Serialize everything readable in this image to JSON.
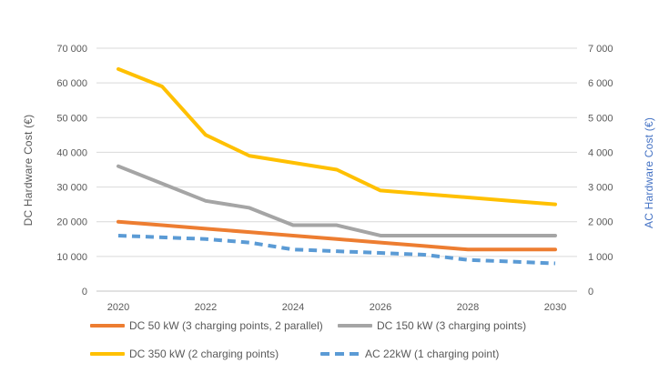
{
  "chart_data": {
    "type": "line",
    "title": "",
    "x": [
      2020,
      2021,
      2022,
      2023,
      2024,
      2025,
      2026,
      2027,
      2028,
      2029,
      2030
    ],
    "x_ticks": {
      "values": [
        2020,
        2022,
        2024,
        2026,
        2028,
        2030
      ],
      "labels": [
        "2020",
        "2022",
        "2024",
        "2026",
        "2028",
        "2030"
      ]
    },
    "left_axis": {
      "label": "DC Hardware Cost (€)",
      "min": 0,
      "max": 70000,
      "tick_values": [
        70000,
        60000,
        50000,
        40000,
        30000,
        20000,
        10000,
        0
      ],
      "tick_labels": [
        "70 000",
        "60 000",
        "50 000",
        "40 000",
        "30 000",
        "20 000",
        "10 000",
        "0"
      ]
    },
    "right_axis": {
      "label": "AC Hardware Cost (€)",
      "min": 0,
      "max": 7000,
      "tick_values": [
        7000,
        6000,
        5000,
        4000,
        3000,
        2000,
        1000,
        0
      ],
      "tick_labels": [
        "7 000",
        "6 000",
        "5 000",
        "4 000",
        "3 000",
        "2 000",
        "1 000",
        "0"
      ]
    },
    "grid": true,
    "legend_position": "bottom",
    "colors": {
      "gridline": "#D9D9D9",
      "baseline": "#C6C6C6",
      "tick_text": "#595959"
    },
    "series": [
      {
        "name": "DC 50 kW (3 charging points, 2 parallel)",
        "axis": "left",
        "color": "#ED7D31",
        "style": "solid",
        "values": [
          20000,
          19000,
          18000,
          17000,
          16000,
          15000,
          14000,
          13000,
          12000,
          12000,
          12000
        ]
      },
      {
        "name": "DC 150 kW (3 charging points)",
        "axis": "left",
        "color": "#A5A5A5",
        "style": "solid",
        "values": [
          36000,
          31000,
          26000,
          24000,
          19000,
          19000,
          16000,
          16000,
          16000,
          16000,
          16000
        ]
      },
      {
        "name": "DC 350 kW (2 charging points)",
        "axis": "left",
        "color": "#FFC000",
        "style": "solid",
        "values": [
          64000,
          59000,
          45000,
          39000,
          37000,
          35000,
          29000,
          28000,
          27000,
          26000,
          25000
        ]
      },
      {
        "name": "AC 22kW (1 charging point)",
        "axis": "right",
        "color": "#5B9BD5",
        "style": "dashed",
        "values": [
          1600,
          1550,
          1500,
          1400,
          1200,
          1150,
          1100,
          1050,
          900,
          850,
          800
        ]
      }
    ]
  }
}
